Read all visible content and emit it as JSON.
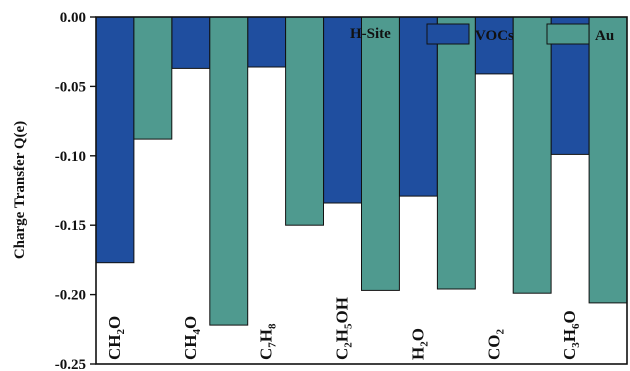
{
  "chart_data": {
    "type": "bar",
    "ylabel": "Charge Transfer Q(e)",
    "ylim": [
      -0.25,
      0.0
    ],
    "yticks": [
      "0.00",
      "-0.05",
      "-0.10",
      "-0.15",
      "-0.20",
      "-0.25"
    ],
    "categories": [
      {
        "main": "CH",
        "sub": "2",
        "tail": "O"
      },
      {
        "main": "CH",
        "sub": "4",
        "tail": "O"
      },
      {
        "main": "C",
        "sub": "7",
        "mid": "H",
        "sub2": "8"
      },
      {
        "main": "C",
        "sub": "2",
        "mid": "H",
        "sub2": "5",
        "tail": "OH"
      },
      {
        "main": "H",
        "sub": "2",
        "tail": "O"
      },
      {
        "main": "CO",
        "sub": "2"
      },
      {
        "main": "C",
        "sub": "3",
        "mid": "H",
        "sub2": "6",
        "tail": "O"
      }
    ],
    "series": [
      {
        "name": "VOCs",
        "color": "#1f4e9f",
        "values": [
          -0.177,
          -0.037,
          -0.036,
          -0.134,
          -0.129,
          -0.041,
          -0.099
        ]
      },
      {
        "name": "Au",
        "color": "#4f9a8f",
        "values": [
          -0.088,
          -0.222,
          -0.15,
          -0.197,
          -0.196,
          -0.199,
          -0.206
        ]
      }
    ],
    "legend": {
      "title": "H-Site",
      "position": "top-right"
    },
    "grid": false
  }
}
